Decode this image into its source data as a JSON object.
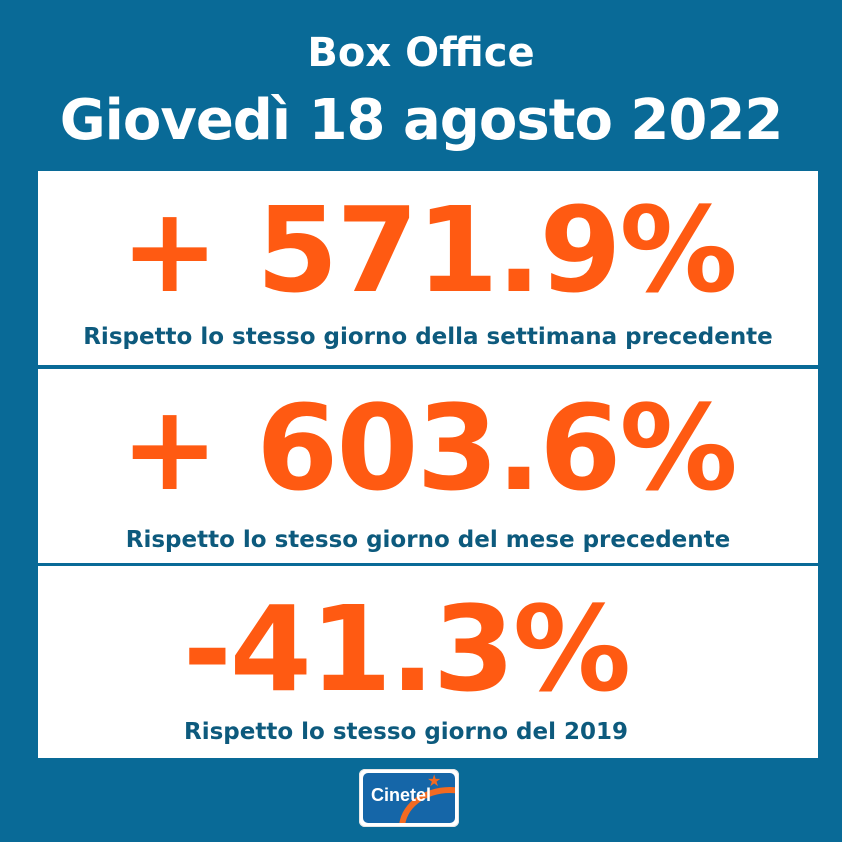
{
  "header": {
    "title": "Box Office",
    "date": "Giovedì 18 agosto 2022"
  },
  "stats": [
    {
      "value": "+ 571.9%",
      "caption": "Rispetto lo stesso giorno della settimana precedente"
    },
    {
      "value": "+ 603.6%",
      "caption": "Rispetto lo stesso giorno del mese precedente"
    },
    {
      "value": "-41.3%",
      "caption": "Rispetto lo stesso giorno del 2019"
    }
  ],
  "logo": {
    "text": "Cinetel",
    "icon": "star-icon"
  },
  "colors": {
    "background": "#096a97",
    "accent": "#ff5a12",
    "caption": "#0d5a7d",
    "card": "#ffffff"
  }
}
